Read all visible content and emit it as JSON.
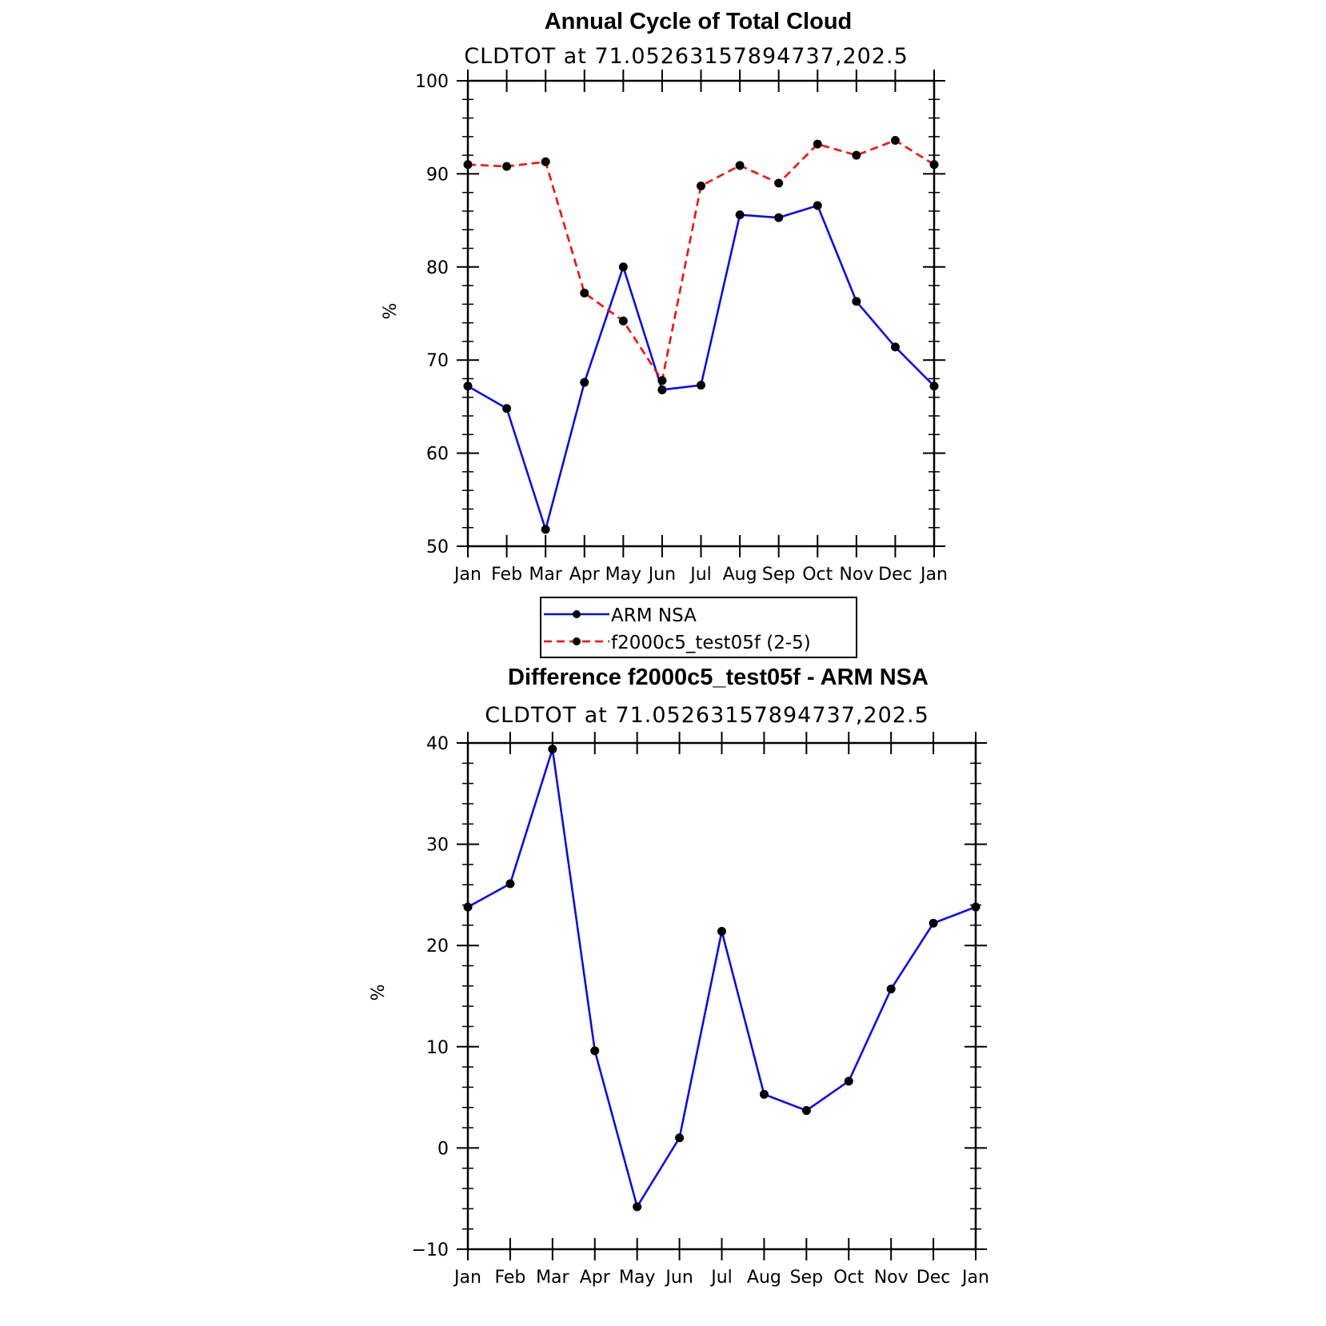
{
  "chart_data": [
    {
      "type": "line",
      "title": "Annual Cycle of Total Cloud",
      "subtitle": "CLDTOT at 71.05263157894737,202.5",
      "ylabel": "%",
      "ylim": [
        50,
        100
      ],
      "yticks": [
        50,
        60,
        70,
        80,
        90,
        100
      ],
      "categories": [
        "Jan",
        "Feb",
        "Mar",
        "Apr",
        "May",
        "Jun",
        "Jul",
        "Aug",
        "Sep",
        "Oct",
        "Nov",
        "Dec",
        "Jan"
      ],
      "series": [
        {
          "name": "ARM NSA",
          "color": "#0000ff",
          "dash": "solid",
          "values": [
            67.2,
            64.8,
            51.8,
            67.6,
            80.0,
            66.8,
            67.3,
            85.6,
            85.3,
            86.6,
            76.3,
            71.4,
            67.2
          ]
        },
        {
          "name": "f2000c5_test05f (2-5)",
          "color": "#ff0000",
          "dash": "dashed",
          "values": [
            91.0,
            90.8,
            91.3,
            77.2,
            74.2,
            67.8,
            88.7,
            90.9,
            89.0,
            93.2,
            92.0,
            93.6,
            91.0
          ]
        }
      ],
      "legend": "bottom-center"
    },
    {
      "type": "line",
      "title": "Difference f2000c5_test05f - ARM NSA",
      "subtitle": "CLDTOT at 71.05263157894737,202.5",
      "ylabel": "%",
      "ylim": [
        -10,
        40
      ],
      "yticks": [
        -10,
        0,
        10,
        20,
        30,
        40
      ],
      "categories": [
        "Jan",
        "Feb",
        "Mar",
        "Apr",
        "May",
        "Jun",
        "Jul",
        "Aug",
        "Sep",
        "Oct",
        "Nov",
        "Dec",
        "Jan"
      ],
      "series": [
        {
          "color": "#0000ff",
          "dash": "solid",
          "values": [
            23.8,
            26.1,
            39.4,
            9.6,
            -5.8,
            1.0,
            21.4,
            5.3,
            3.7,
            6.6,
            15.7,
            22.2,
            23.8
          ]
        }
      ]
    }
  ]
}
